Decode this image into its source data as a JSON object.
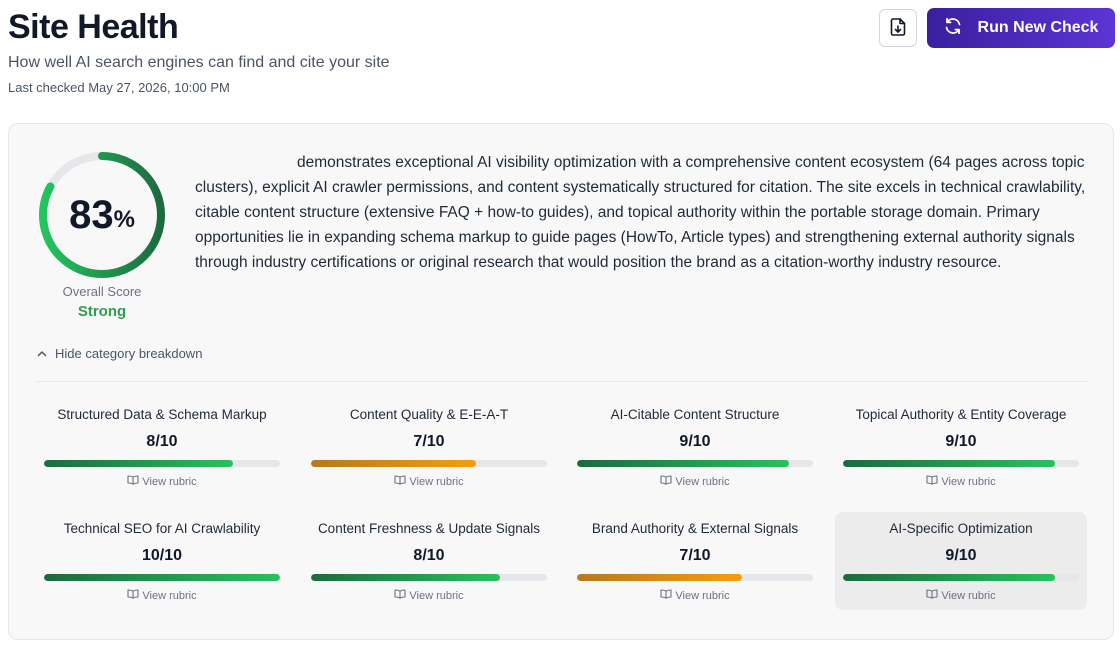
{
  "header": {
    "title": "Site Health",
    "subtitle": "How well AI search engines can find and cite your site",
    "last_checked": "Last checked May 27, 2026, 10:00 PM"
  },
  "actions": {
    "export_icon": "file-download-icon",
    "run_icon": "refresh-icon",
    "run_label": "Run New Check",
    "run_color": "#4a2bc2"
  },
  "score": {
    "value": "83",
    "value_fraction": 0.83,
    "unit": "%",
    "label": "Overall Score",
    "rating": "Strong",
    "rating_color": "#2e9d4f"
  },
  "summary": "demonstrates exceptional AI visibility optimization with a comprehensive content ecosystem (64 pages across topic clusters), explicit AI crawler permissions, and content systematically structured for citation. The site excels in technical crawlability, citable content structure (extensive FAQ + how-to guides), and topical authority within the portable storage domain. Primary opportunities lie in expanding schema markup to guide pages (HowTo, Article types) and strengthening external authority signals through industry certifications or original research that would position the brand as a citation-worthy industry resource.",
  "breakdown": {
    "toggle_label": "Hide category breakdown",
    "toggle_icon": "chevron-up-icon",
    "rubric_label": "View rubric",
    "rubric_icon": "book-icon",
    "categories": [
      {
        "name": "Structured Data & Schema Markup",
        "score": "8/10",
        "value": 8,
        "color": "green"
      },
      {
        "name": "Content Quality & E-E-A-T",
        "score": "7/10",
        "value": 7,
        "color": "orange"
      },
      {
        "name": "AI-Citable Content Structure",
        "score": "9/10",
        "value": 9,
        "color": "green"
      },
      {
        "name": "Topical Authority & Entity Coverage",
        "score": "9/10",
        "value": 9,
        "color": "green"
      },
      {
        "name": "Technical SEO for AI Crawlability",
        "score": "10/10",
        "value": 10,
        "color": "green"
      },
      {
        "name": "Content Freshness & Update Signals",
        "score": "8/10",
        "value": 8,
        "color": "green"
      },
      {
        "name": "Brand Authority & External Signals",
        "score": "7/10",
        "value": 7,
        "color": "orange"
      },
      {
        "name": "AI-Specific Optimization",
        "score": "9/10",
        "value": 9,
        "color": "green"
      }
    ]
  }
}
